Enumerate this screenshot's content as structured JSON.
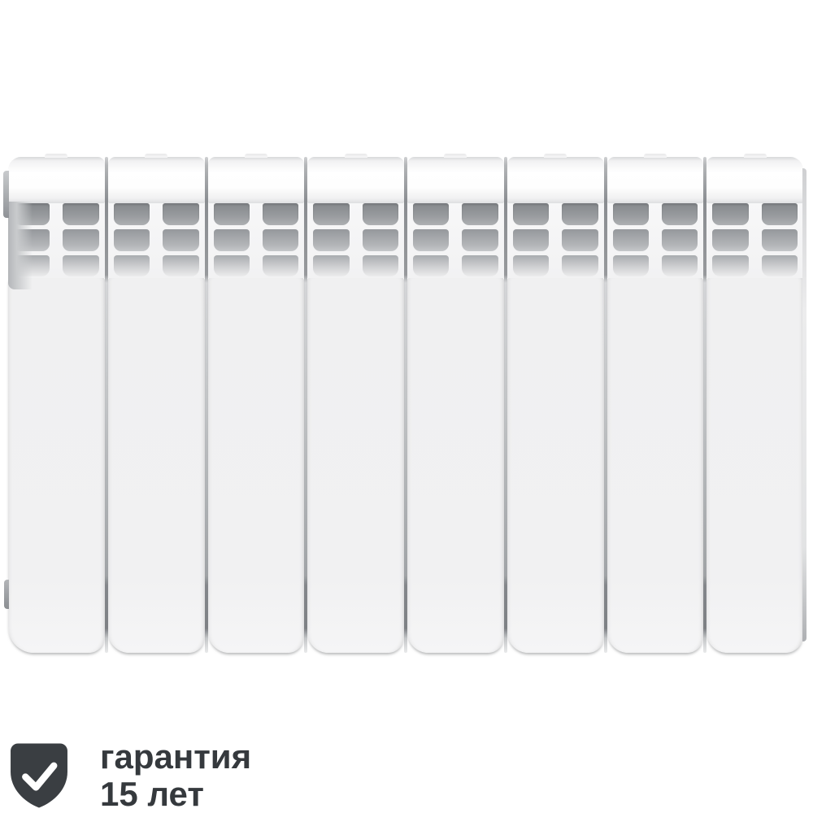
{
  "page": {
    "background_color": "#ffffff"
  },
  "product_image": {
    "description": "White sectional aluminium heating radiator, front view",
    "section_count": 8,
    "vent_rows_per_section": 3,
    "vent_columns_per_section": 2,
    "body_color": "#f1f1f2",
    "cap_color": "#ffffff",
    "vent_dark_color": "#85888c",
    "vent_light_color": "#ececed",
    "joint_color": "#8a8d91"
  },
  "badge": {
    "icon": "shield-check-icon",
    "icon_color": "#3a3e42",
    "check_color": "#ffffff",
    "text_color": "#35393d",
    "line1": "гарантия",
    "line2": "15 лет"
  }
}
